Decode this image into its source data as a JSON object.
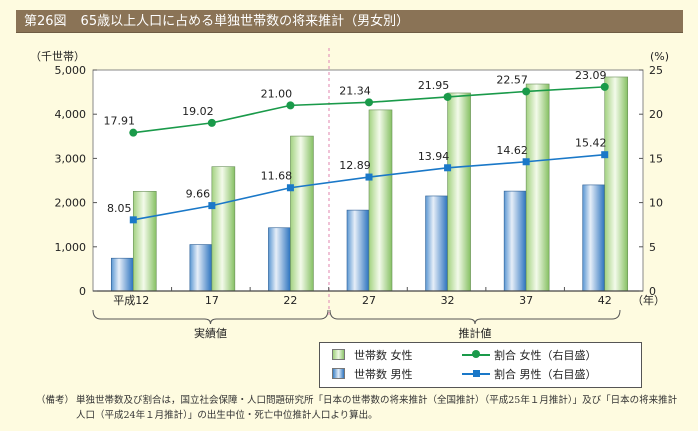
{
  "figure": {
    "number": "第26図",
    "title": "65歳以上人口に占める単独世帯数の将来推計（男女別）"
  },
  "chart_data": {
    "type": "bar+line",
    "title": "65歳以上人口に占める単独世帯数の将来推計（男女別）",
    "categories": [
      "平成12",
      "17",
      "22",
      "27",
      "32",
      "37",
      "42"
    ],
    "x_unit": "（年）",
    "left_axis": {
      "label": "（千世帯）",
      "ylim": [
        0,
        5000
      ],
      "ticks": [
        0,
        1000,
        2000,
        3000,
        4000,
        5000
      ],
      "tick_labels": [
        "0",
        "1,000",
        "2,000",
        "3,000",
        "4,000",
        "5,000"
      ]
    },
    "right_axis": {
      "label": "(%)",
      "ylim": [
        0,
        25
      ],
      "ticks": [
        0,
        5,
        10,
        15,
        20,
        25
      ],
      "tick_labels": [
        "0",
        "5",
        "10",
        "15",
        "20",
        "25"
      ]
    },
    "bar_series": [
      {
        "name": "世帯数 男性",
        "color": "#2f78c2",
        "axis": "left",
        "values": [
          742,
          1051,
          1431,
          1830,
          2150,
          2260,
          2400
        ]
      },
      {
        "name": "世帯数 女性",
        "color": "#8cc46a",
        "axis": "left",
        "values": [
          2255,
          2813,
          3505,
          4097,
          4480,
          4683,
          4842
        ]
      }
    ],
    "line_series": [
      {
        "name": "割合 女性（右目盛）",
        "color": "#1a9a4a",
        "marker": "circle",
        "axis": "right",
        "values": [
          17.91,
          19.02,
          21.0,
          21.34,
          21.95,
          22.57,
          23.09
        ],
        "labels": [
          "17.91",
          "19.02",
          "21.00",
          "21.34",
          "21.95",
          "22.57",
          "23.09"
        ]
      },
      {
        "name": "割合 男性（右目盛）",
        "color": "#1a78c8",
        "marker": "square",
        "axis": "right",
        "values": [
          8.05,
          9.66,
          11.68,
          12.89,
          13.94,
          14.62,
          15.42
        ],
        "labels": [
          "8.05",
          "9.66",
          "11.68",
          "12.89",
          "13.94",
          "14.62",
          "15.42"
        ]
      }
    ],
    "groups": [
      {
        "label": "実績値",
        "from": "平成12",
        "to": "22"
      },
      {
        "label": "推計値",
        "from": "27",
        "to": "42"
      }
    ],
    "divider_between": [
      "22",
      "27"
    ],
    "grid": false,
    "legend_position": "bottom-right"
  },
  "legend": {
    "bar_female": "世帯数 女性",
    "bar_male": "世帯数 男性",
    "line_female": "割合 女性（右目盛）",
    "line_male": "割合 男性（右目盛）"
  },
  "note": {
    "label": "（備考）",
    "text": "単独世帯数及び割合は，国立社会保障・人口問題研究所「日本の世帯数の将来推計（全国推計）（平成25年１月推計）」及び「日本の将来推計人口（平成24年１月推計）」の出生中位・死亡中位推計人口より算出。"
  }
}
